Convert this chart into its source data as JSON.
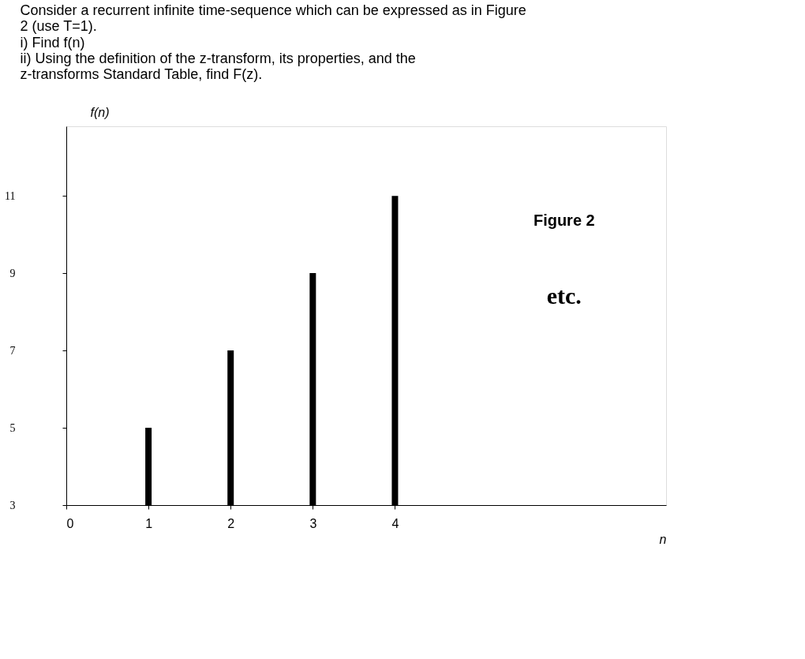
{
  "chart_data": {
    "type": "bar",
    "title": "Consider a recurrent infinite time-sequence which can be expressed as in Figure 2 (use T=1).",
    "annotations": [
      "i) Find f(n)",
      "ii) Using the definition of the z-transform, its properties, and the z-transforms Standard Table, find F(z).",
      "Figure 2",
      "etc."
    ],
    "x": [
      1,
      2,
      3,
      4
    ],
    "values": [
      5,
      7,
      9,
      11
    ],
    "color": "#000000",
    "xlabel": "n",
    "ylabel": "f(n)",
    "xlim": [
      0,
      7.3
    ],
    "xticks": [
      0,
      1,
      2,
      3,
      4
    ],
    "ylim": [
      3,
      12.8
    ],
    "yticks": [
      3,
      5,
      7,
      9,
      11
    ],
    "grid": false
  }
}
